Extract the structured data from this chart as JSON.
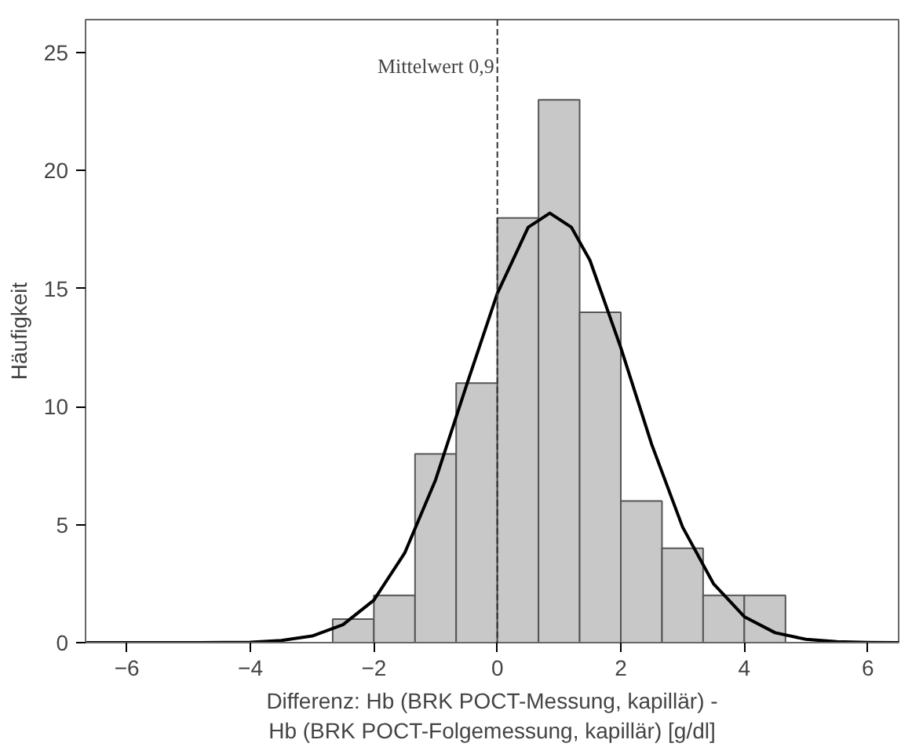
{
  "chart_data": {
    "type": "histogram",
    "xlabel": "Differenz: Hb (BRK POCT-Messung, kapillär) -\nHb (BRK POCT-Folgemessung, kapillär) [g/dl]",
    "ylabel": "Häufigkeit",
    "bins": [
      -2.667,
      -2.0,
      -1.333,
      -0.667,
      0,
      0.667,
      1.333,
      2.0,
      2.667,
      3.333,
      4.0,
      4.667
    ],
    "values": [
      1,
      2,
      8,
      11,
      18,
      23,
      14,
      6,
      4,
      2,
      2
    ],
    "color": "#c8c8c8",
    "series": [
      {
        "type": "line",
        "color": "#000000",
        "x": [
          -6.67,
          -5,
          -4,
          -3.5,
          -3,
          -2.5,
          -2,
          -1.5,
          -1,
          -0.5,
          0,
          0.5,
          0.85,
          1.2,
          1.5,
          2,
          2.5,
          3,
          3.5,
          4,
          4.5,
          5,
          5.5,
          6,
          6.5
        ],
        "values": [
          0,
          0,
          0.02,
          0.09,
          0.28,
          0.76,
          1.8,
          3.8,
          6.9,
          10.9,
          14.8,
          17.6,
          18.2,
          17.6,
          16.2,
          12.5,
          8.4,
          4.9,
          2.5,
          1.1,
          0.42,
          0.14,
          0.04,
          0.01,
          0
        ]
      }
    ],
    "ref_lines": [
      {
        "axis": "x",
        "value": 0,
        "label": "Mittelwert 0,9",
        "line_style": "dashed"
      }
    ],
    "xlim": [
      -6.67,
      6.5
    ],
    "ylim": [
      0,
      26.4
    ],
    "xticks": [
      -6,
      -4,
      -2,
      0,
      2,
      4,
      6
    ],
    "yticks": [
      0,
      5,
      10,
      15,
      20,
      25
    ],
    "grid": false
  }
}
